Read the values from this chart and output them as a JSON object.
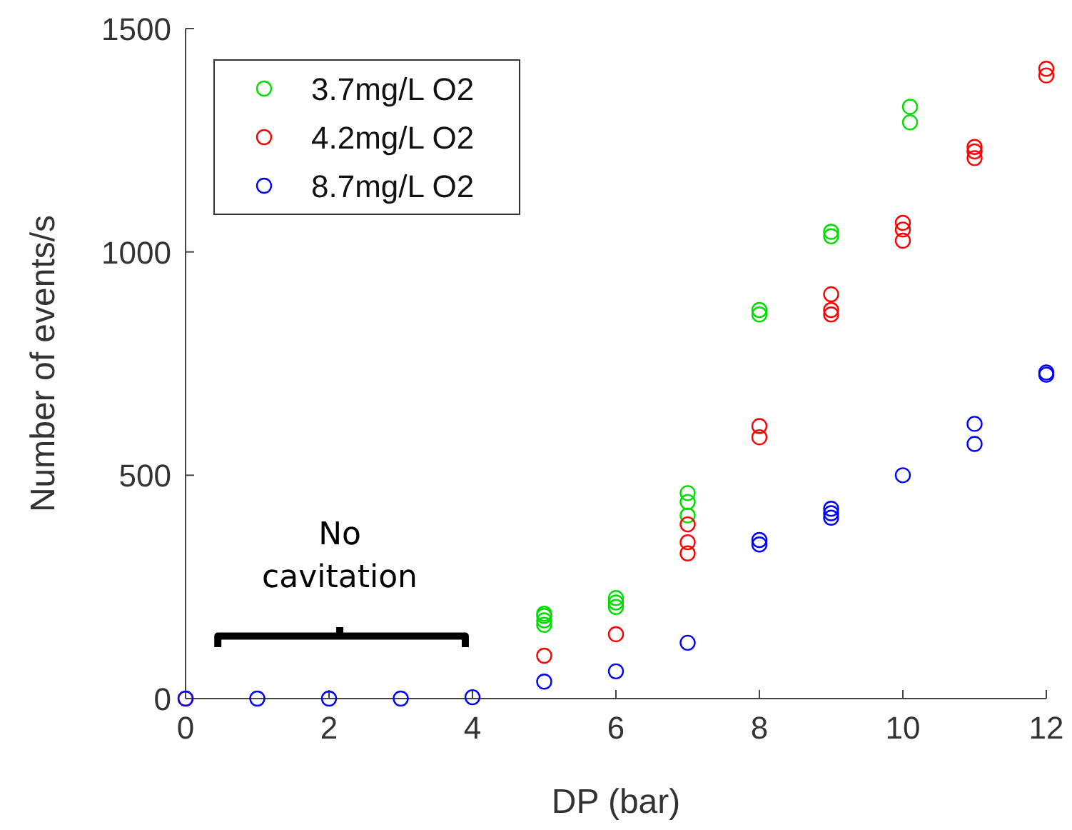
{
  "chart_data": {
    "type": "scatter",
    "xlabel": "DP (bar)",
    "ylabel": "Number of events/s",
    "xlim": [
      0,
      12
    ],
    "ylim": [
      0,
      1500
    ],
    "xticks": [
      0,
      2,
      4,
      6,
      8,
      10,
      12
    ],
    "yticks": [
      0,
      500,
      1000,
      1500
    ],
    "grid": false,
    "legend": "top left",
    "marker": "circle",
    "annotations": [
      "No cavitation"
    ],
    "series": [
      {
        "name": "3.7mg/L O2",
        "color": "#00dd00",
        "x": [
          5,
          5,
          5,
          5,
          6,
          6,
          6,
          7,
          7,
          7,
          8,
          8,
          9,
          9,
          10.1,
          10.1
        ],
        "values": [
          165,
          175,
          185,
          190,
          205,
          215,
          225,
          460,
          440,
          410,
          860,
          870,
          1035,
          1045,
          1325,
          1290
        ]
      },
      {
        "name": "4.2mg/L O2",
        "color": "#ff0000",
        "x": [
          0,
          5,
          6,
          7,
          7,
          7,
          8,
          8,
          9,
          9,
          9,
          10,
          10,
          10,
          11,
          11,
          11,
          12,
          12
        ],
        "values": [
          0,
          96,
          144,
          390,
          350,
          325,
          610,
          585,
          905,
          870,
          860,
          1065,
          1050,
          1025,
          1235,
          1225,
          1210,
          1410,
          1395
        ]
      },
      {
        "name": "8.7mg/L O2",
        "color": "#0000ff",
        "x": [
          0,
          1,
          2,
          3,
          4,
          5,
          6,
          7,
          8,
          8,
          9,
          9,
          9,
          10,
          11,
          11,
          12,
          12
        ],
        "values": [
          0,
          0,
          0,
          0,
          3,
          38,
          61,
          125,
          355,
          345,
          425,
          415,
          405,
          500,
          615,
          570,
          730,
          725
        ]
      }
    ]
  }
}
